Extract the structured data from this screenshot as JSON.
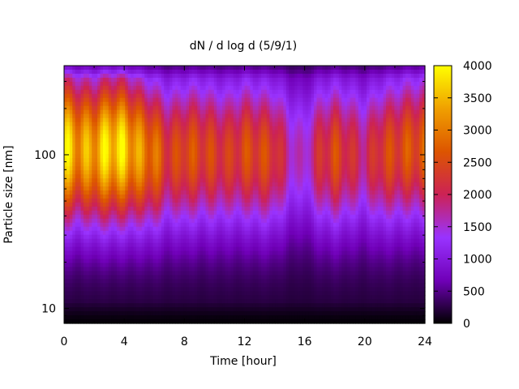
{
  "chart_data": {
    "type": "heatmap",
    "title": "dN / d log d (5/9/1)",
    "xlabel": "Time [hour]",
    "ylabel": "Particle size [nm]",
    "xlim": [
      0,
      24
    ],
    "x_ticks": [
      0,
      4,
      8,
      12,
      16,
      20,
      24
    ],
    "y_scale": "log",
    "ylim": [
      8,
      380
    ],
    "y_ticks": [
      10,
      100
    ],
    "colorbar": {
      "range": [
        0,
        4000
      ],
      "ticks": [
        0,
        500,
        1000,
        1500,
        2000,
        2500,
        3000,
        3500,
        4000
      ],
      "colormap": "gnuplot-pm3d",
      "colors": [
        "#000000",
        "#7000b8",
        "#9933ff",
        "#cc2255",
        "#dd5500",
        "#f0a000",
        "#ffff00"
      ]
    },
    "series": [
      {
        "hours": [
          0,
          1,
          2,
          3,
          4,
          5,
          6,
          7,
          8,
          9,
          10,
          11,
          12,
          13,
          14,
          15,
          16,
          17,
          18,
          19,
          20,
          21,
          22,
          23,
          24
        ],
        "peak_size_nm": [
          110,
          110,
          105,
          110,
          110,
          105,
          100,
          100,
          100,
          105,
          100,
          100,
          105,
          100,
          100,
          100,
          100,
          100,
          100,
          100,
          100,
          100,
          105,
          110,
          110
        ],
        "peak_value": [
          3600,
          3100,
          3200,
          3600,
          3500,
          3000,
          2700,
          2100,
          2400,
          2300,
          2200,
          2100,
          2300,
          2300,
          2200,
          1500,
          1300,
          2000,
          2300,
          2000,
          1700,
          2200,
          2300,
          2400,
          2500
        ]
      }
    ]
  }
}
